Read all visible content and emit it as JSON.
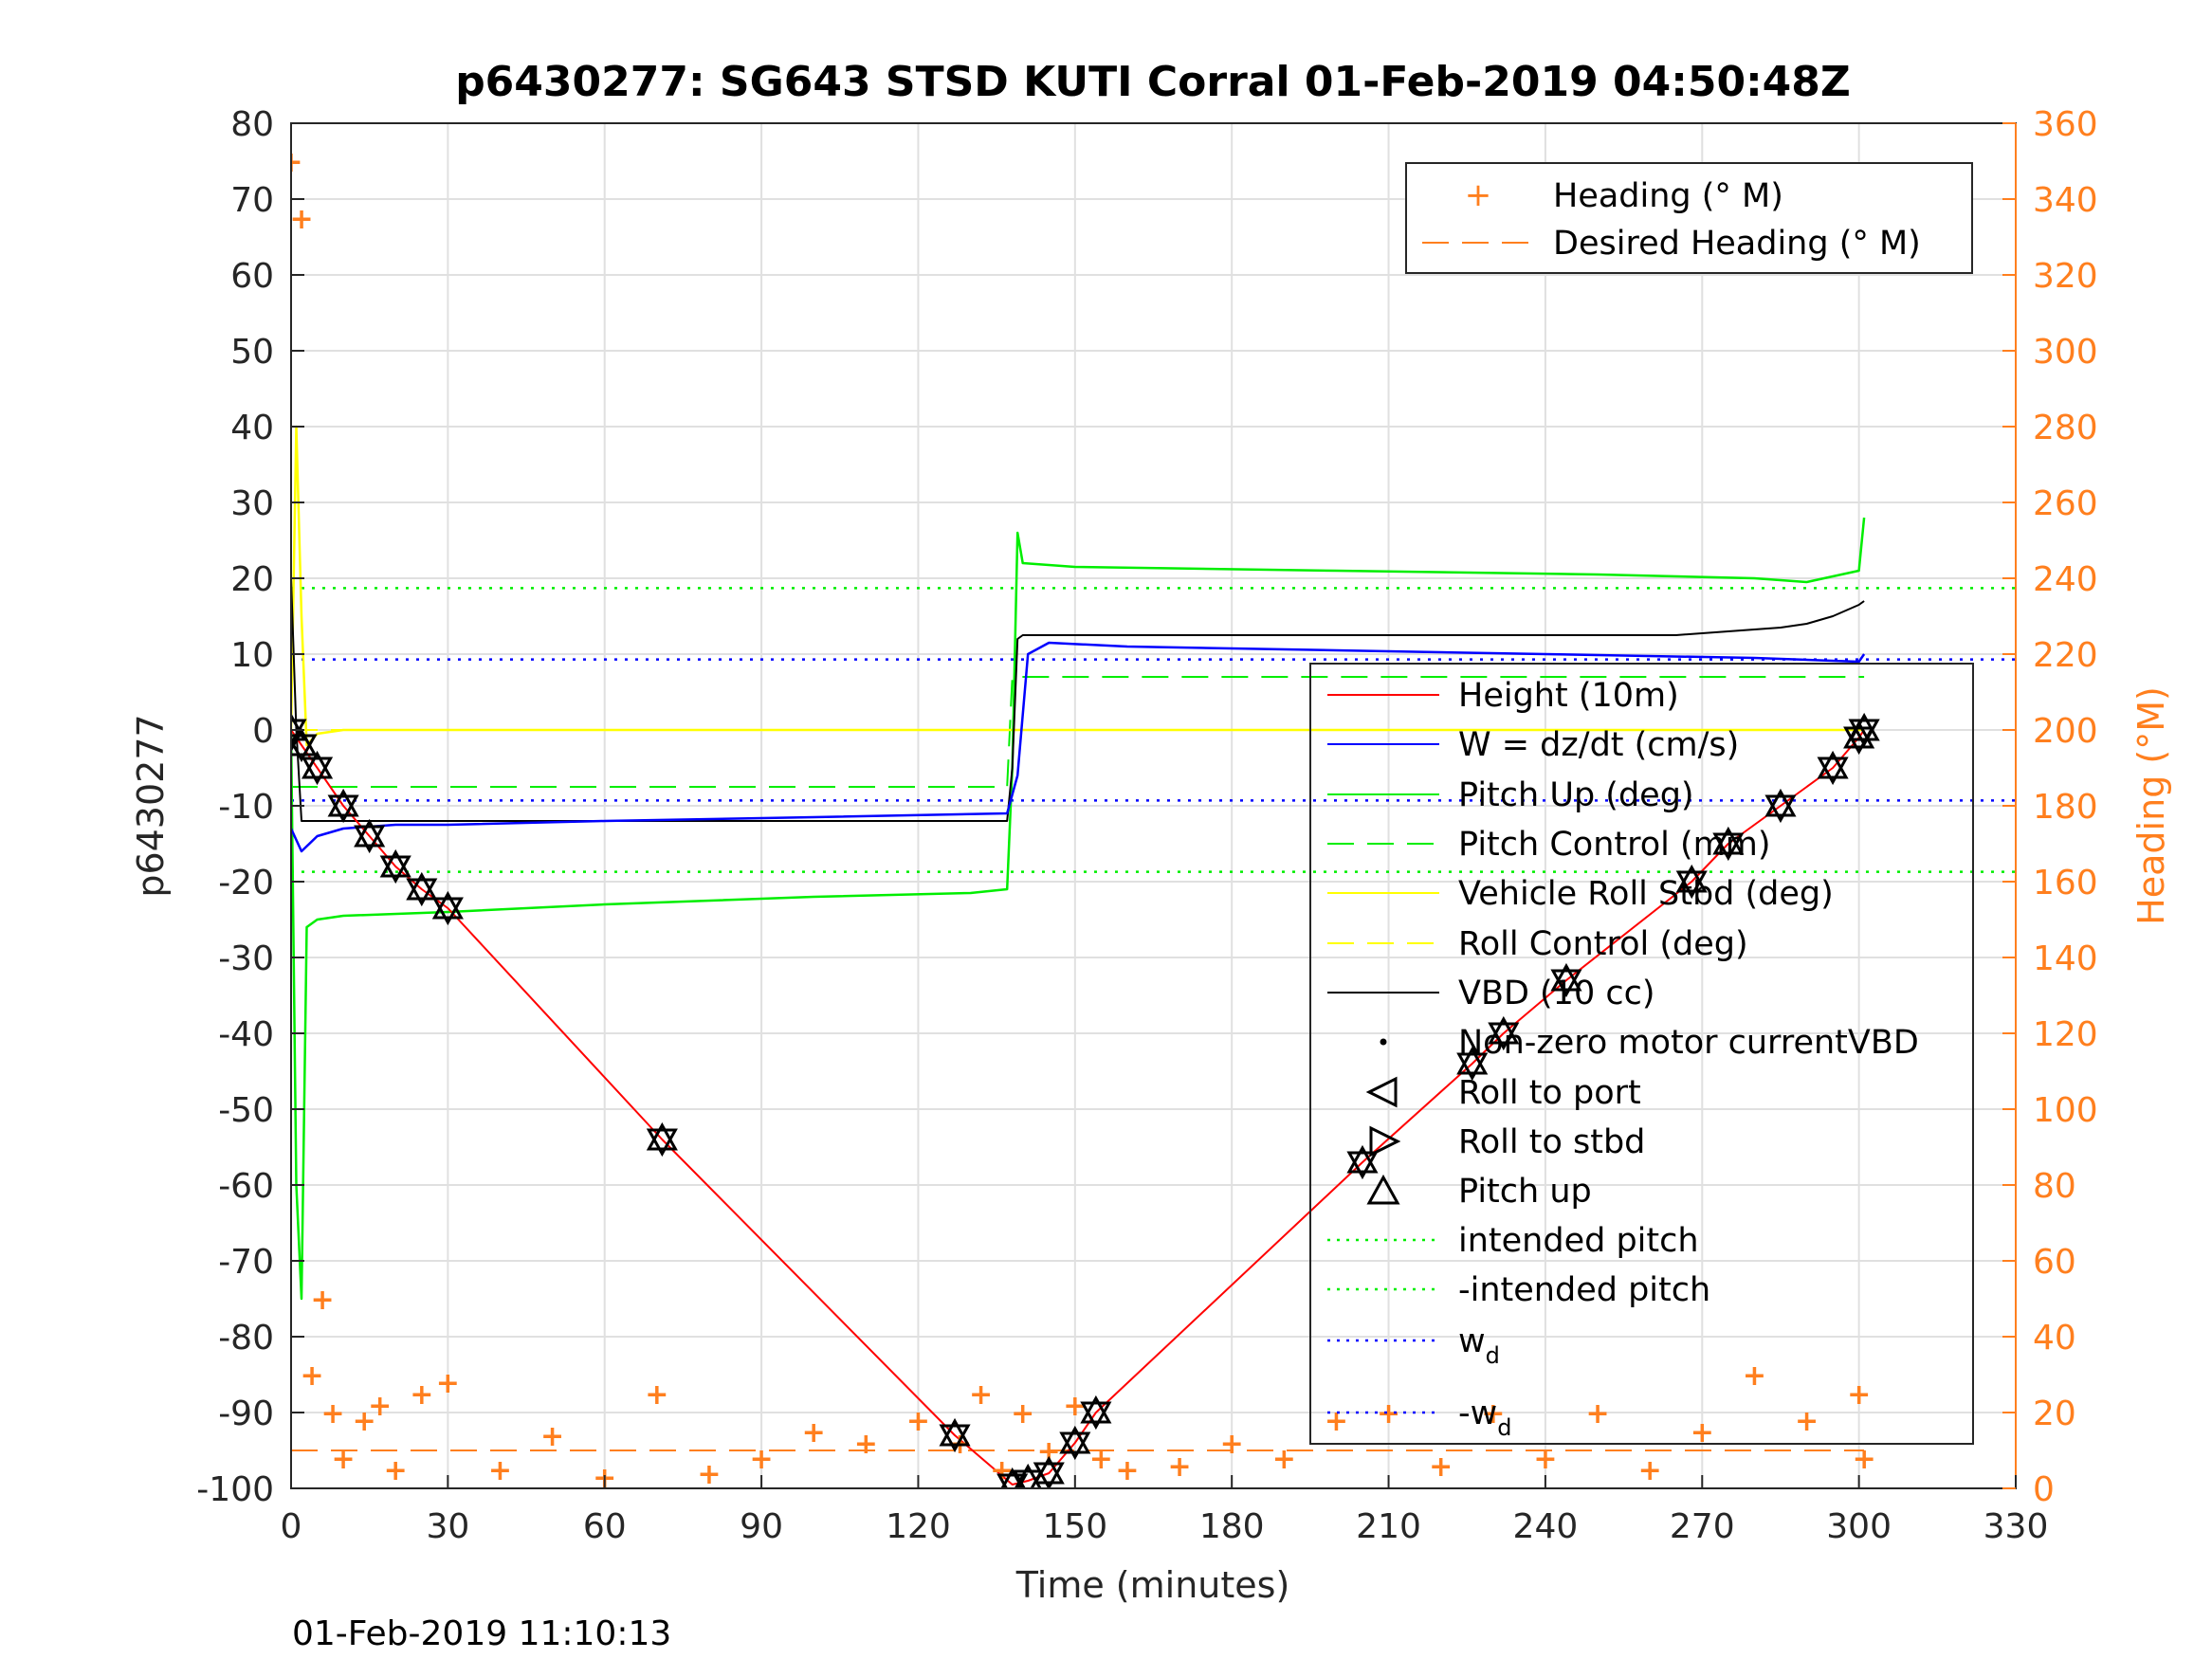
{
  "footer_timestamp": "01-Feb-2019 11:10:13",
  "colors": {
    "height": "#ff0000",
    "w": "#0000ff",
    "pitch": "#00ee00",
    "roll": "#ffff00",
    "vbd": "#000000",
    "heading": "#ff7f1e",
    "grid": "#e0e0e0",
    "axis": "#262626"
  },
  "chart_data": {
    "type": "line",
    "title": "p6430277: SG643 STSD KUTI Corral 01-Feb-2019 04:50:48Z",
    "xlabel": "Time (minutes)",
    "ylabel": "p6430277",
    "y2label": "Heading (°M)",
    "xlim": [
      0,
      330
    ],
    "ylim": [
      -100,
      80
    ],
    "y2lim": [
      0,
      360
    ],
    "xticks": [
      "0",
      "30",
      "60",
      "90",
      "120",
      "150",
      "180",
      "210",
      "240",
      "270",
      "300",
      "330"
    ],
    "yticks": [
      "80",
      "70",
      "60",
      "50",
      "40",
      "30",
      "20",
      "10",
      "0",
      "-10",
      "-20",
      "-30",
      "-40",
      "-50",
      "-60",
      "-70",
      "-80",
      "-90",
      "-100"
    ],
    "y2ticks": [
      "360",
      "340",
      "320",
      "300",
      "280",
      "260",
      "240",
      "220",
      "200",
      "180",
      "160",
      "140",
      "120",
      "100",
      "80",
      "60",
      "40",
      "20",
      "0"
    ],
    "grid": true,
    "legend_right_axis": {
      "placement": "top-right",
      "entries": [
        "Heading (° M)",
        "Desired Heading (° M)"
      ]
    },
    "legend_left_axis": {
      "placement": "lower-right",
      "entries": [
        "Height (10m)",
        "W = dz/dt (cm/s)",
        "Pitch Up (deg)",
        "Pitch Control (mm)",
        "Vehicle Roll Stbd (deg)",
        "Roll Control (deg)",
        "VBD (10 cc)",
        "Non-zero motor currentVBD",
        "Roll to port",
        "Roll to stbd",
        "Pitch up",
        "intended pitch",
        "-intended pitch",
        "w",
        "-w"
      ],
      "subscript": "d"
    },
    "reference_lines": [
      {
        "name": "intended pitch",
        "y": 18.7
      },
      {
        "name": "-intended pitch",
        "y": -18.7
      },
      {
        "name": "w_d",
        "y": 9.3
      },
      {
        "name": "-w_d",
        "y": -9.3
      }
    ],
    "series": [
      {
        "name": "Height (10m)",
        "axis": "left",
        "x": [
          0,
          2,
          5,
          10,
          15,
          20,
          25,
          30,
          71,
          127,
          138,
          141,
          145,
          150,
          154,
          205,
          226,
          232,
          244,
          268,
          275,
          285,
          295,
          300,
          301
        ],
        "y": [
          0,
          -2,
          -5,
          -10,
          -14,
          -18,
          -21,
          -23.5,
          -54,
          -93,
          -99.5,
          -99,
          -98,
          -94,
          -90,
          -57,
          -44,
          -40,
          -33,
          -20,
          -15,
          -10,
          -5,
          -1,
          0
        ]
      },
      {
        "name": "W = dz/dt (cm/s)",
        "axis": "left",
        "x": [
          0,
          2,
          5,
          10,
          20,
          30,
          60,
          100,
          137,
          139,
          141,
          145,
          160,
          200,
          240,
          280,
          300,
          301
        ],
        "y": [
          -13,
          -16,
          -14,
          -13,
          -12.5,
          -12.5,
          -12,
          -11.5,
          -11,
          -6,
          10,
          11.5,
          11,
          10.5,
          10,
          9.5,
          9,
          10
        ]
      },
      {
        "name": "Pitch Up (deg)",
        "axis": "left",
        "x": [
          0,
          1,
          2,
          3,
          5,
          10,
          30,
          60,
          100,
          130,
          137,
          138,
          139,
          140,
          150,
          200,
          250,
          280,
          290,
          300,
          301
        ],
        "y": [
          0,
          -60,
          -75,
          -26,
          -25,
          -24.5,
          -24,
          -23,
          -22,
          -21.5,
          -21,
          -5,
          26,
          22,
          21.5,
          21,
          20.5,
          20,
          19.5,
          21,
          28
        ]
      },
      {
        "name": "Pitch Control (mm)",
        "axis": "left",
        "x": [
          0,
          137,
          138,
          301
        ],
        "y": [
          -7.5,
          -7.5,
          7,
          7
        ]
      },
      {
        "name": "Vehicle Roll Stbd (deg)",
        "axis": "left",
        "x": [
          0,
          1,
          2,
          3,
          5,
          10,
          30,
          60,
          100,
          137,
          140,
          150,
          200,
          250,
          301
        ],
        "y": [
          0,
          40,
          15,
          -2,
          -0.5,
          0,
          0,
          0,
          0,
          0,
          0,
          0,
          0,
          0,
          0
        ]
      },
      {
        "name": "Roll Control (deg)",
        "axis": "left",
        "x": [
          0,
          301
        ],
        "y": [
          0,
          0
        ]
      },
      {
        "name": "VBD (10 cc)",
        "axis": "left",
        "x": [
          0,
          1,
          2,
          137,
          138,
          139,
          140,
          150,
          200,
          250,
          265,
          275,
          285,
          290,
          295,
          300,
          301
        ],
        "y": [
          20,
          0,
          -12,
          -12,
          -5,
          12,
          12.5,
          12.5,
          12.5,
          12.5,
          12.5,
          13,
          13.5,
          14,
          15,
          16.5,
          17
        ]
      },
      {
        "name": "Heading (° M)",
        "axis": "right",
        "x": [
          0,
          2,
          4,
          6,
          8,
          10,
          14,
          17,
          20,
          25,
          30,
          40,
          50,
          60,
          70,
          80,
          90,
          100,
          110,
          120,
          128,
          132,
          136,
          140,
          145,
          150,
          155,
          160,
          170,
          180,
          190,
          200,
          210,
          220,
          230,
          240,
          250,
          260,
          270,
          280,
          290,
          300,
          301
        ],
        "y": [
          350,
          335,
          30,
          50,
          20,
          8,
          18,
          22,
          5,
          25,
          28,
          5,
          14,
          3,
          25,
          4,
          8,
          15,
          12,
          18,
          12,
          25,
          5,
          20,
          10,
          22,
          8,
          5,
          6,
          12,
          8,
          18,
          20,
          6,
          20,
          8,
          20,
          5,
          15,
          30,
          18,
          25,
          8
        ]
      },
      {
        "name": "Desired Heading (° M)",
        "axis": "right",
        "x": [
          0,
          301
        ],
        "y": [
          10,
          10
        ]
      }
    ]
  }
}
